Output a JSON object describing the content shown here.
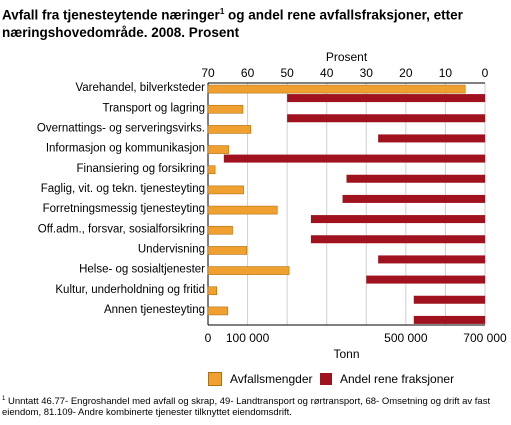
{
  "chart_data": {
    "type": "bar",
    "title": "Avfall fra tjenesteytende næringer",
    "title_sup": "1",
    "title_rest": " og andel rene avfallsfraksjoner, etter næringshovedområde. 2008. Prosent",
    "categories": [
      "Varehandel, bilverksteder",
      "Transport og lagring",
      "Overnattings- og serveringsvirks.",
      "Informasjon og kommunikasjon",
      "Finansiering og forsikring",
      "Faglig, vit. og tekn. tjenesteyting",
      "Forretningsmessig tjenesteyting",
      "Off.adm., forsvar, sosialforsikring",
      "Undervisning",
      "Helse- og sosialtjenester",
      "Kultur, underholdning og fritid",
      "Annen tjenesteyting"
    ],
    "series": [
      {
        "name": "Avfallsmengder",
        "axis": "bottom",
        "color": "#f0a030",
        "values": [
          650000,
          88000,
          108000,
          52000,
          18000,
          90000,
          175000,
          62000,
          98000,
          205000,
          22000,
          50000
        ]
      },
      {
        "name": "Andel rene fraksjoner",
        "axis": "top",
        "color": "#a0121e",
        "values": [
          50,
          50,
          27,
          66,
          35,
          36,
          44,
          44,
          27,
          30,
          18,
          18
        ]
      }
    ],
    "bottom_axis": {
      "label": "Tonn",
      "range": [
        0,
        700000
      ],
      "ticks": [
        0,
        100000,
        500000,
        700000
      ],
      "tick_labels": [
        "0",
        "100 000",
        "500 000",
        "700 000"
      ]
    },
    "top_axis": {
      "label": "Prosent",
      "range": [
        70,
        0
      ],
      "ticks": [
        70,
        60,
        50,
        40,
        30,
        20,
        10,
        0
      ],
      "tick_labels": [
        "70",
        "60",
        "50",
        "40",
        "30",
        "20",
        "10",
        "0"
      ]
    },
    "grid": "vertical",
    "legend": "bottom"
  },
  "footnote": {
    "marker": "1",
    "text": " Unntatt 46.77- Engroshandel med avfall og skrap, 49- Landtransport og rørtransport, 68- Omsetning og drift av fast eiendom, 81.109- Andre kombinerte tjenester tilknyttet eiendomsdrift."
  }
}
